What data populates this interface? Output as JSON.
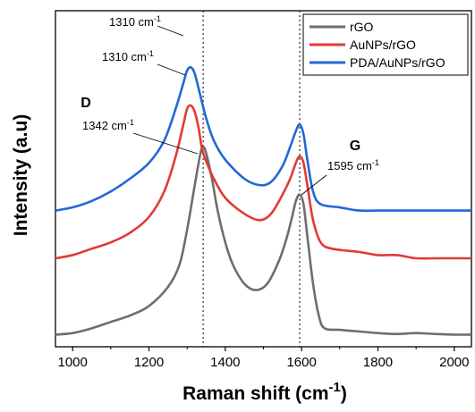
{
  "chart_data": {
    "type": "line",
    "xlabel": "Raman shift",
    "xlabel_unit": "(cm",
    "xlabel_sup": "-1",
    "xlabel_close": ")",
    "ylabel": "Intensity (a.u)",
    "xlim": [
      955,
      2045
    ],
    "ylim": [
      0,
      1
    ],
    "yticks_visible": false,
    "xticks": [
      1000,
      1200,
      1400,
      1600,
      1800,
      2000
    ],
    "xtick_labels": [
      "1000",
      "1200",
      "1400",
      "1600",
      "1800",
      "2000"
    ],
    "grid": false,
    "legend_position": "top-right",
    "reference_lines": [
      1342,
      1595
    ],
    "series": [
      {
        "name": "rGO",
        "color": "#6e6e6e",
        "x": [
          955,
          1000,
          1050,
          1100,
          1150,
          1200,
          1250,
          1280,
          1300,
          1320,
          1335,
          1342,
          1350,
          1365,
          1380,
          1400,
          1420,
          1450,
          1480,
          1510,
          1540,
          1560,
          1575,
          1585,
          1595,
          1605,
          1615,
          1630,
          1645,
          1660,
          1700,
          1750,
          1800,
          1850,
          1900,
          1950,
          2000,
          2045
        ],
        "values": [
          0.01,
          0.015,
          0.03,
          0.05,
          0.07,
          0.1,
          0.16,
          0.23,
          0.34,
          0.48,
          0.58,
          0.6,
          0.58,
          0.5,
          0.4,
          0.3,
          0.23,
          0.17,
          0.15,
          0.17,
          0.24,
          0.31,
          0.38,
          0.43,
          0.45,
          0.42,
          0.32,
          0.17,
          0.07,
          0.03,
          0.025,
          0.02,
          0.015,
          0.012,
          0.015,
          0.012,
          0.01,
          0.01
        ]
      },
      {
        "name": "AuNPs/rGO",
        "color": "#e23a35",
        "x": [
          955,
          1000,
          1050,
          1100,
          1150,
          1200,
          1240,
          1270,
          1290,
          1300,
          1310,
          1320,
          1330,
          1340,
          1355,
          1370,
          1400,
          1450,
          1490,
          1520,
          1550,
          1570,
          1585,
          1595,
          1605,
          1615,
          1630,
          1650,
          1680,
          1750,
          1800,
          1850,
          1900,
          1950,
          2000,
          2045
        ],
        "values": [
          0.25,
          0.26,
          0.28,
          0.3,
          0.33,
          0.38,
          0.46,
          0.57,
          0.67,
          0.72,
          0.73,
          0.71,
          0.66,
          0.59,
          0.54,
          0.5,
          0.44,
          0.39,
          0.37,
          0.39,
          0.45,
          0.5,
          0.55,
          0.57,
          0.55,
          0.48,
          0.37,
          0.3,
          0.28,
          0.27,
          0.26,
          0.26,
          0.25,
          0.25,
          0.25,
          0.25
        ]
      },
      {
        "name": "PDA/AuNPs/rGO",
        "color": "#2168d6",
        "x": [
          955,
          1000,
          1050,
          1100,
          1150,
          1200,
          1240,
          1270,
          1290,
          1300,
          1310,
          1320,
          1335,
          1350,
          1370,
          1400,
          1450,
          1490,
          1520,
          1550,
          1570,
          1585,
          1595,
          1605,
          1615,
          1630,
          1650,
          1700,
          1750,
          1800,
          1850,
          1900,
          1950,
          2000,
          2045
        ],
        "values": [
          0.4,
          0.41,
          0.43,
          0.46,
          0.5,
          0.55,
          0.62,
          0.72,
          0.8,
          0.84,
          0.85,
          0.83,
          0.76,
          0.69,
          0.62,
          0.56,
          0.5,
          0.48,
          0.49,
          0.54,
          0.6,
          0.65,
          0.67,
          0.64,
          0.56,
          0.46,
          0.42,
          0.41,
          0.4,
          0.4,
          0.4,
          0.4,
          0.4,
          0.4,
          0.4
        ]
      }
    ],
    "annotations": [
      {
        "text": "1310 cm",
        "sup": "-1",
        "x": 1310,
        "series": 2
      },
      {
        "text": "1310 cm",
        "sup": "-1",
        "x": 1310,
        "series": 1
      },
      {
        "text": "1342 cm",
        "sup": "-1",
        "x": 1342,
        "series": 0
      },
      {
        "text": "1595 cm",
        "sup": "-1",
        "x": 1595,
        "series": 0
      }
    ],
    "peak_labels": [
      {
        "text": "D",
        "x": 1342
      },
      {
        "text": "G",
        "x": 1595
      }
    ]
  }
}
